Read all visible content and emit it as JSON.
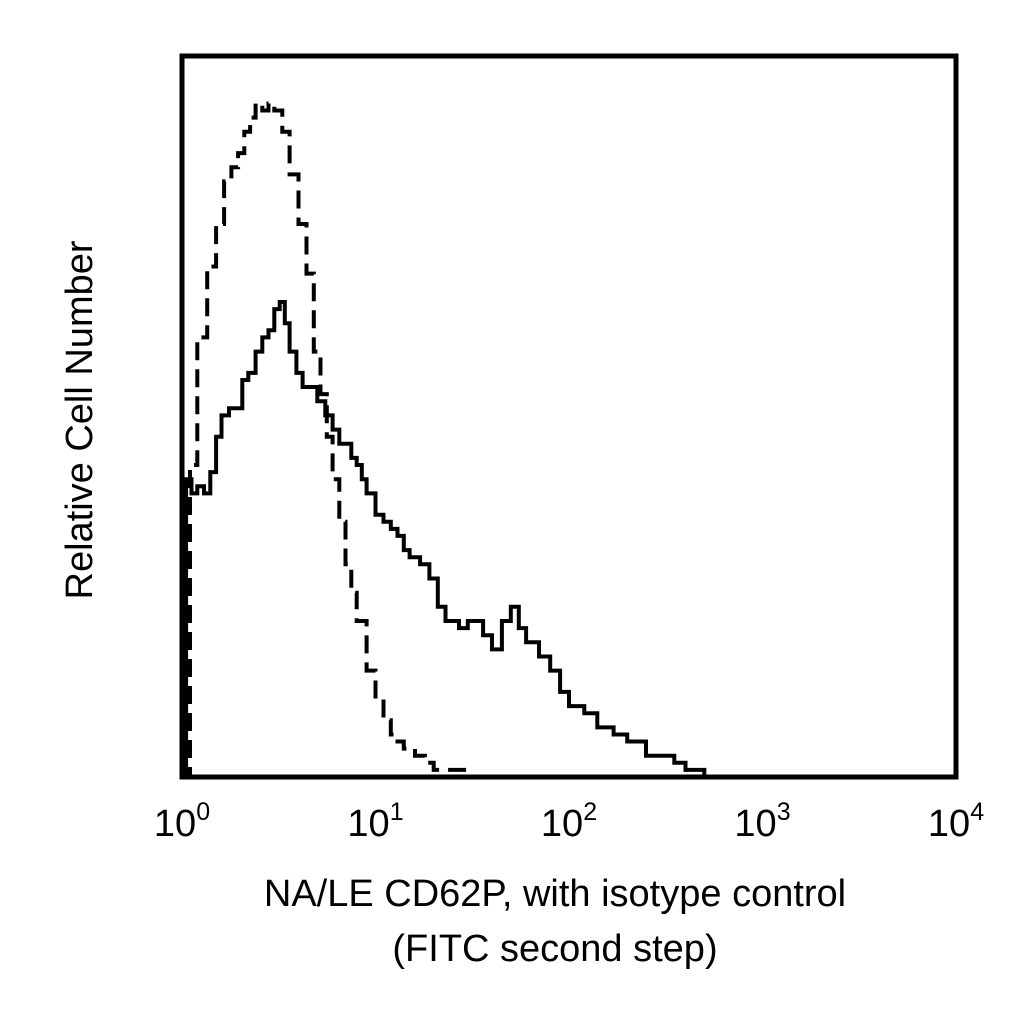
{
  "chart_data": {
    "type": "histogram",
    "xscale": "log",
    "xlim": [
      1,
      10000
    ],
    "ylim": [
      0,
      100
    ],
    "grid": false,
    "legend": "none",
    "xticks": [
      {
        "value": 1,
        "base": "10",
        "exp": "0"
      },
      {
        "value": 10,
        "base": "10",
        "exp": "1"
      },
      {
        "value": 100,
        "base": "10",
        "exp": "2"
      },
      {
        "value": 1000,
        "base": "10",
        "exp": "3"
      },
      {
        "value": 10000,
        "base": "10",
        "exp": "4"
      }
    ],
    "xlabel": [
      "NA/LE CD62P, with isotype control",
      "(FITC second step)"
    ],
    "ylabel": "Relative Cell Number",
    "series": [
      {
        "style": "solid",
        "color": "#000000",
        "x": [
          1.0,
          1.05,
          1.12,
          1.2,
          1.3,
          1.4,
          1.5,
          1.6,
          1.75,
          1.9,
          2.05,
          2.2,
          2.4,
          2.6,
          2.8,
          3.0,
          3.2,
          3.4,
          3.6,
          3.9,
          4.2,
          4.5,
          5.0,
          5.5,
          6.0,
          6.5,
          7.0,
          7.5,
          8.0,
          8.5,
          9.0,
          10.0,
          11.0,
          12.0,
          13.0,
          14.0,
          15.0,
          17.0,
          19.0,
          21.0,
          23.0,
          25.0,
          27.0,
          30.0,
          33.0,
          36.0,
          40.0,
          45.0,
          50.0,
          55.0,
          60.0,
          70.0,
          80.0,
          90.0,
          100.0,
          120.0,
          140.0,
          170.0,
          200.0,
          250.0,
          300.0,
          350.0,
          400.0,
          450.0,
          500.0,
          1000.0,
          10000.0
        ],
        "y": [
          0,
          42,
          40,
          41,
          40,
          43,
          48,
          51,
          52,
          52,
          56,
          57,
          60,
          62,
          63,
          66,
          67,
          64,
          60,
          57,
          55,
          55,
          53,
          51,
          49,
          47,
          47,
          45,
          44,
          42,
          40,
          37,
          36,
          35,
          34,
          32,
          31,
          30,
          28,
          24,
          22,
          22,
          21,
          22,
          22,
          20,
          18,
          22,
          24,
          21,
          19,
          17,
          15,
          12,
          10,
          9,
          7,
          6,
          5,
          3,
          3,
          2,
          1,
          1,
          0,
          0,
          0
        ]
      },
      {
        "style": "dashed",
        "color": "#000000",
        "x": [
          1.0,
          1.1,
          1.2,
          1.35,
          1.5,
          1.65,
          1.8,
          1.95,
          2.1,
          2.25,
          2.4,
          2.6,
          2.8,
          3.0,
          3.3,
          3.6,
          4.0,
          4.4,
          4.8,
          5.2,
          5.6,
          6.0,
          6.5,
          7.0,
          7.5,
          8.0,
          9.0,
          10.0,
          11.0,
          12.0,
          13.0,
          14.0,
          16.0,
          18.0,
          20.0,
          25.0,
          30.0,
          50.0,
          100.0,
          500.0,
          1000.0,
          10000.0
        ],
        "y": [
          0,
          44,
          62,
          72,
          78,
          84,
          86,
          88,
          91,
          93,
          95,
          94,
          95,
          94,
          91,
          85,
          78,
          71,
          60,
          54,
          48,
          42,
          36,
          30,
          26,
          22,
          15,
          11,
          8,
          6,
          5,
          4,
          3,
          2,
          1,
          1,
          0,
          0,
          0,
          0,
          0,
          0
        ]
      }
    ]
  }
}
